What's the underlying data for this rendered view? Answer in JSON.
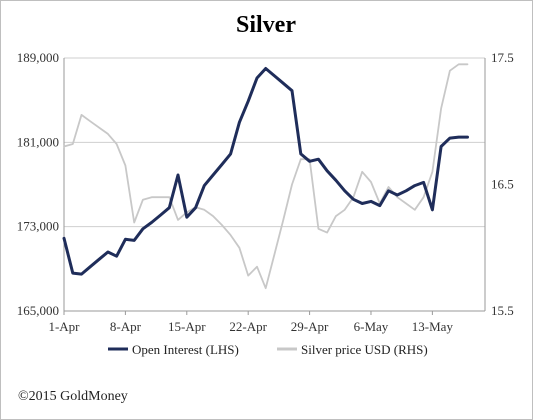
{
  "chart_data": {
    "type": "line",
    "title": "Silver",
    "x_tick_labels": [
      "1-Apr",
      "8-Apr",
      "15-Apr",
      "22-Apr",
      "29-Apr",
      "6-May",
      "13-May"
    ],
    "y_left": {
      "ticks": [
        "165,000",
        "173,000",
        "181,000",
        "189,000"
      ],
      "ylim": [
        165000,
        189000
      ]
    },
    "y_right": {
      "ticks": [
        "15.5",
        "16.5",
        "17.5"
      ],
      "ylim": [
        15.5,
        17.5
      ]
    },
    "grid": "horizontal",
    "legend_position": "bottom",
    "series": [
      {
        "name": "Open Interest (LHS)",
        "axis": "left",
        "color": "#1f2d5a",
        "x": [
          1,
          2,
          3,
          4,
          5,
          6,
          7,
          8,
          9,
          10,
          11,
          12,
          13,
          14,
          15,
          16,
          17,
          18,
          19,
          20,
          21,
          22,
          23,
          24,
          25,
          26,
          27,
          28,
          29,
          30,
          31,
          32,
          33,
          34,
          35,
          36,
          37,
          38,
          39,
          40,
          41,
          42,
          43,
          44,
          45,
          46,
          47
        ],
        "y": [
          171900,
          168600,
          168500,
          169200,
          169900,
          170600,
          170200,
          171800,
          171700,
          172800,
          173400,
          174100,
          174800,
          177900,
          173900,
          174800,
          176900,
          177900,
          178900,
          179900,
          182900,
          184900,
          187100,
          188000,
          187300,
          186600,
          185900,
          179900,
          179200,
          179400,
          178300,
          177400,
          176400,
          175600,
          175200,
          175400,
          175000,
          176400,
          176000,
          176400,
          176900,
          177200,
          174600,
          180600,
          181400,
          181500,
          181500
        ]
      },
      {
        "name": "Silver price USD (RHS)",
        "axis": "right",
        "color": "#c8c8c8",
        "x": [
          1,
          2,
          3,
          4,
          5,
          6,
          7,
          8,
          9,
          10,
          11,
          12,
          13,
          14,
          15,
          16,
          17,
          18,
          19,
          20,
          21,
          22,
          23,
          24,
          25,
          26,
          27,
          28,
          29,
          30,
          31,
          32,
          33,
          34,
          35,
          36,
          37,
          38,
          39,
          40,
          41,
          42,
          43,
          44,
          45,
          46,
          47
        ],
        "y": [
          16.8,
          16.82,
          17.05,
          17.0,
          16.95,
          16.9,
          16.82,
          16.65,
          16.2,
          16.38,
          16.4,
          16.4,
          16.4,
          16.22,
          16.28,
          16.32,
          16.3,
          16.25,
          16.18,
          16.1,
          16.0,
          15.78,
          15.85,
          15.68,
          15.95,
          16.22,
          16.5,
          16.7,
          16.7,
          16.15,
          16.12,
          16.25,
          16.3,
          16.4,
          16.6,
          16.52,
          16.35,
          16.48,
          16.4,
          16.35,
          16.3,
          16.4,
          16.6,
          17.1,
          17.4,
          17.45,
          17.45
        ]
      }
    ]
  },
  "copyright": "©2015 GoldMoney"
}
